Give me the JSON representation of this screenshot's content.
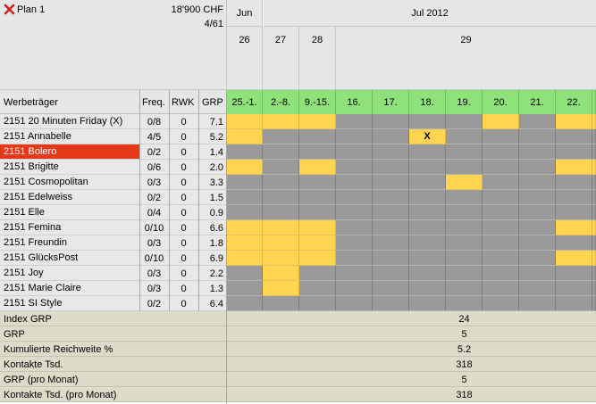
{
  "plan": {
    "name": "Plan 1",
    "amount": "18'900 CHF",
    "ratio": "4/61"
  },
  "months": [
    "Jun",
    "Jul 2012"
  ],
  "weeks": [
    "26",
    "27",
    "28",
    "29"
  ],
  "columns": {
    "werbetraeger": "Werbeträger",
    "freq": "Freq.",
    "rwk": "RWK",
    "grp": "GRP"
  },
  "dates": [
    "25.-1.",
    "2.-8.",
    "9.-15.",
    "16.",
    "17.",
    "18.",
    "19.",
    "20.",
    "21.",
    "22."
  ],
  "rows": [
    {
      "name": "2151 20 Minuten Friday (X)",
      "freq": "0/8",
      "rwk": "0",
      "grp": "7.1"
    },
    {
      "name": "2151 Annabelle",
      "freq": "4/5",
      "rwk": "0",
      "grp": "5.2"
    },
    {
      "name": "2151 Bolero",
      "freq": "0/2",
      "rwk": "0",
      "grp": "1.4"
    },
    {
      "name": "2151 Brigitte",
      "freq": "0/6",
      "rwk": "0",
      "grp": "2.0"
    },
    {
      "name": "2151 Cosmopolitan",
      "freq": "0/3",
      "rwk": "0",
      "grp": "3.3"
    },
    {
      "name": "2151 Edelweiss",
      "freq": "0/2",
      "rwk": "0",
      "grp": "1.5"
    },
    {
      "name": "2151 Elle",
      "freq": "0/4",
      "rwk": "0",
      "grp": "0.9"
    },
    {
      "name": "2151 Femina",
      "freq": "0/10",
      "rwk": "0",
      "grp": "6.6"
    },
    {
      "name": "2151 Freundin",
      "freq": "0/3",
      "rwk": "0",
      "grp": "1.8"
    },
    {
      "name": "2151 GlücksPost",
      "freq": "0/10",
      "rwk": "0",
      "grp": "6.9"
    },
    {
      "name": "2151 Joy",
      "freq": "0/3",
      "rwk": "0",
      "grp": "2.2"
    },
    {
      "name": "2151 Marie Claire",
      "freq": "0/3",
      "rwk": "0",
      "grp": "1.3"
    },
    {
      "name": "2151 SI Style",
      "freq": "0/2",
      "rwk": "0",
      "grp": "6.4"
    }
  ],
  "grid": [
    "yyyggggygy",
    "yggggxgggg",
    "gggggggggg",
    "ygyggggggy",
    "ggggggyggg",
    "gggggggggg",
    "gggggggggg",
    "yyyggggggy",
    "yyyggggggg",
    "yyyggggggy",
    "gygggggggg",
    "gygggggggg",
    "gggggggggg"
  ],
  "mark": "X",
  "summary": [
    {
      "label": "Index GRP",
      "value": "24"
    },
    {
      "label": "GRP",
      "value": "5"
    },
    {
      "label": "Kumulierte Reichweite %",
      "value": "5.2"
    },
    {
      "label": "Kontakte Tsd.",
      "value": "318"
    },
    {
      "label": "GRP (pro Monat)",
      "value": "5"
    },
    {
      "label": "Kontakte Tsd. (pro Monat)",
      "value": "318"
    }
  ],
  "colors": {
    "filled": "#ffd54f",
    "empty": "#9a9a9a",
    "header_date": "#8fe27a",
    "selected_row": "#e8381a",
    "summary": "#dedcc9"
  },
  "selected_row_index": 2,
  "icons": {
    "plan": "close-icon"
  }
}
